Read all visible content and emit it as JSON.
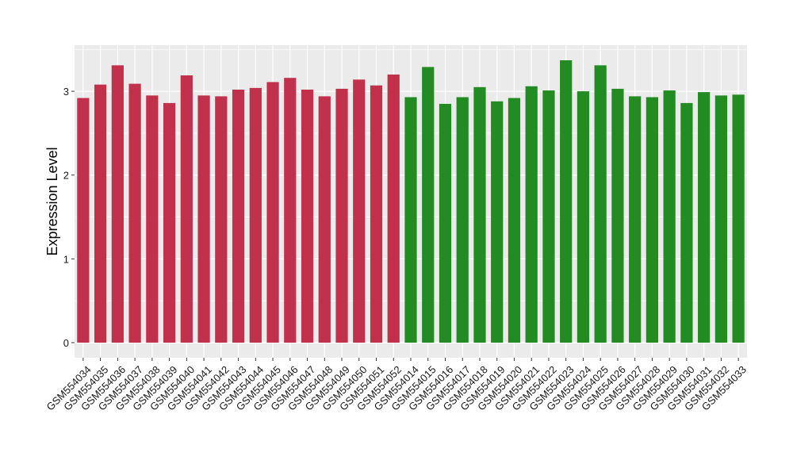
{
  "chart_data": {
    "type": "bar",
    "ylabel": "Expression Level",
    "xlabel": "",
    "title": "",
    "ylim": [
      -0.18,
      3.55
    ],
    "yticks": [
      0,
      1,
      2,
      3
    ],
    "grid": true,
    "legend": "none",
    "categories": [
      "GSM554034",
      "GSM554035",
      "GSM554036",
      "GSM554037",
      "GSM554038",
      "GSM554039",
      "GSM554040",
      "GSM554041",
      "GSM554042",
      "GSM554043",
      "GSM554044",
      "GSM554045",
      "GSM554046",
      "GSM554047",
      "GSM554048",
      "GSM554049",
      "GSM554050",
      "GSM554051",
      "GSM554052",
      "GSM554014",
      "GSM554015",
      "GSM554016",
      "GSM554017",
      "GSM554018",
      "GSM554019",
      "GSM554020",
      "GSM554021",
      "GSM554022",
      "GSM554023",
      "GSM554024",
      "GSM554025",
      "GSM554026",
      "GSM554027",
      "GSM554028",
      "GSM554029",
      "GSM554030",
      "GSM554031",
      "GSM554032",
      "GSM554033"
    ],
    "values": [
      2.92,
      3.08,
      3.31,
      3.09,
      2.95,
      2.86,
      3.19,
      2.95,
      2.94,
      3.02,
      3.04,
      3.11,
      3.16,
      3.02,
      2.94,
      3.03,
      3.14,
      3.07,
      3.2,
      2.93,
      3.29,
      2.85,
      2.93,
      3.05,
      2.88,
      2.92,
      3.06,
      3.01,
      3.37,
      3.0,
      3.31,
      3.03,
      2.94,
      2.93,
      3.01,
      2.86,
      2.99,
      2.95,
      2.96
    ],
    "groups": [
      "red",
      "red",
      "red",
      "red",
      "red",
      "red",
      "red",
      "red",
      "red",
      "red",
      "red",
      "red",
      "red",
      "red",
      "red",
      "red",
      "red",
      "red",
      "red",
      "green",
      "green",
      "green",
      "green",
      "green",
      "green",
      "green",
      "green",
      "green",
      "green",
      "green",
      "green",
      "green",
      "green",
      "green",
      "green",
      "green",
      "green",
      "green",
      "green"
    ],
    "colors": {
      "red": "#c1314b",
      "green": "#228b22",
      "panel": "#ebebeb",
      "grid": "#ffffff"
    }
  }
}
